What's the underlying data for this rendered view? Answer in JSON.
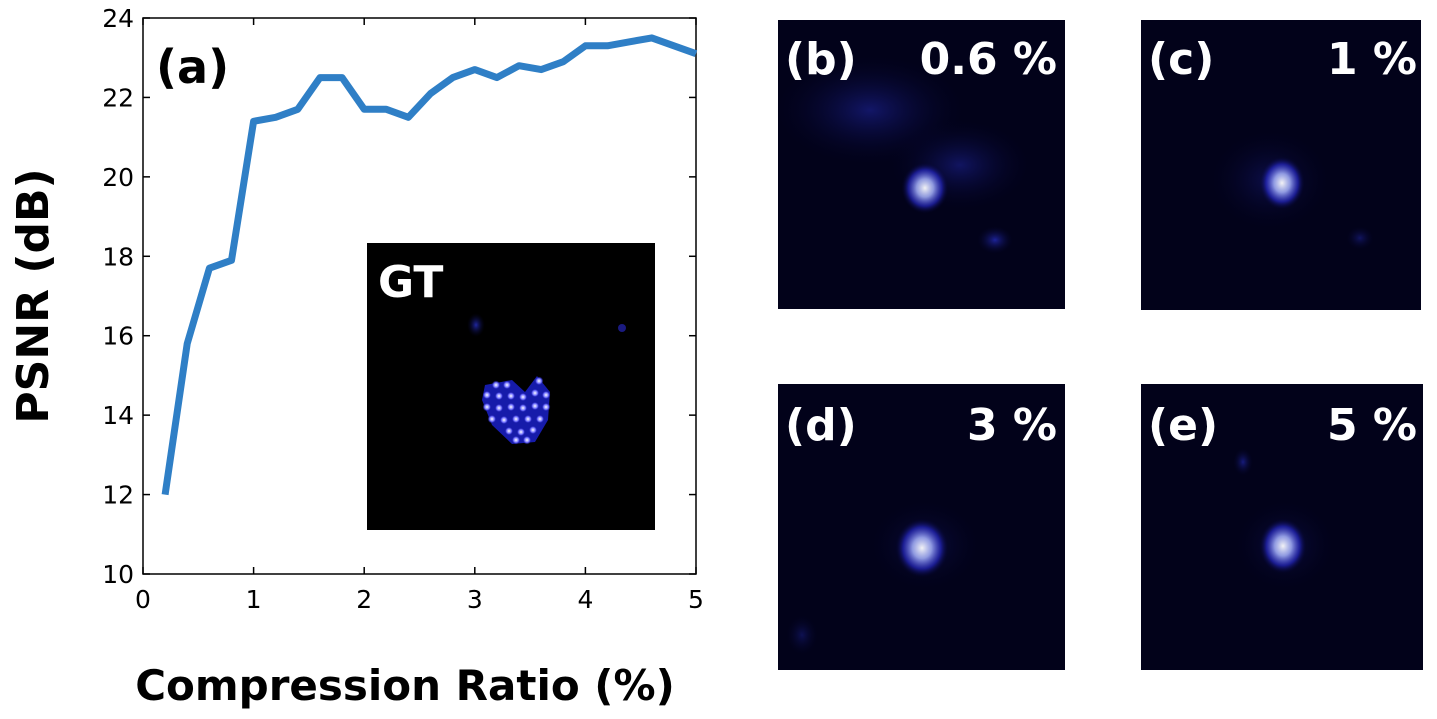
{
  "chart_data": {
    "type": "line",
    "title": "",
    "panel_label": "(a)",
    "xlabel": "Compression Ratio (%)",
    "ylabel": "PSNR (dB)",
    "xlim": [
      0,
      5
    ],
    "ylim": [
      10,
      24
    ],
    "xticks": [
      "0",
      "1",
      "2",
      "3",
      "4",
      "5"
    ],
    "yticks": [
      "10",
      "12",
      "14",
      "16",
      "18",
      "20",
      "22",
      "24"
    ],
    "grid": false,
    "color": "#2f7fc6",
    "series": [
      {
        "x": [
          0.2,
          0.4,
          0.6,
          0.8,
          1.0,
          1.2,
          1.4,
          1.6,
          1.8,
          2.0,
          2.2,
          2.4,
          2.6,
          2.8,
          3.0,
          3.2,
          3.4,
          3.6,
          3.8,
          4.0,
          4.2,
          4.4,
          4.6,
          4.8,
          5.0
        ],
        "y": [
          12.0,
          15.8,
          17.7,
          17.9,
          21.4,
          21.5,
          21.7,
          22.5,
          22.5,
          21.7,
          21.7,
          21.5,
          22.1,
          22.5,
          22.7,
          22.5,
          22.8,
          22.7,
          22.9,
          23.3,
          23.3,
          23.4,
          23.5,
          23.3,
          23.1
        ]
      }
    ],
    "inset": {
      "label": "GT"
    }
  },
  "panels": [
    {
      "label": "(b)",
      "ratio": "0.6 %"
    },
    {
      "label": "(c)",
      "ratio": "1 %"
    },
    {
      "label": "(d)",
      "ratio": "3 %"
    },
    {
      "label": "(e)",
      "ratio": "5 %"
    }
  ]
}
